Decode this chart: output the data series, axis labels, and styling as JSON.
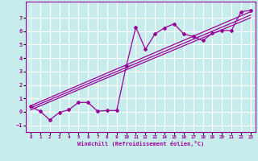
{
  "xlabel": "Windchill (Refroidissement éolien,°C)",
  "bg_color": "#c8ecec",
  "grid_color": "#ffffff",
  "line_color": "#990099",
  "xlim": [
    -0.5,
    23.5
  ],
  "ylim": [
    -1.5,
    8.2
  ],
  "xticks": [
    0,
    1,
    2,
    3,
    4,
    5,
    6,
    7,
    8,
    9,
    10,
    11,
    12,
    13,
    14,
    15,
    16,
    17,
    18,
    19,
    20,
    21,
    22,
    23
  ],
  "yticks": [
    -1,
    0,
    1,
    2,
    3,
    4,
    5,
    6,
    7
  ],
  "series1_x": [
    0,
    1,
    2,
    3,
    4,
    5,
    6,
    7,
    8,
    9,
    10,
    11,
    12,
    13,
    14,
    15,
    16,
    17,
    18,
    19,
    20,
    21,
    22,
    23
  ],
  "series1_y": [
    0.4,
    0.05,
    -0.6,
    -0.05,
    0.15,
    0.7,
    0.7,
    0.05,
    0.1,
    0.1,
    3.4,
    6.3,
    4.65,
    5.8,
    6.25,
    6.55,
    5.8,
    5.6,
    5.3,
    5.85,
    6.05,
    6.05,
    7.45,
    7.55
  ],
  "line1_x": [
    0,
    23
  ],
  "line1_y": [
    0.15,
    7.0
  ],
  "line2_x": [
    0,
    23
  ],
  "line2_y": [
    0.3,
    7.2
  ],
  "line3_x": [
    0,
    23
  ],
  "line3_y": [
    0.45,
    7.45
  ]
}
